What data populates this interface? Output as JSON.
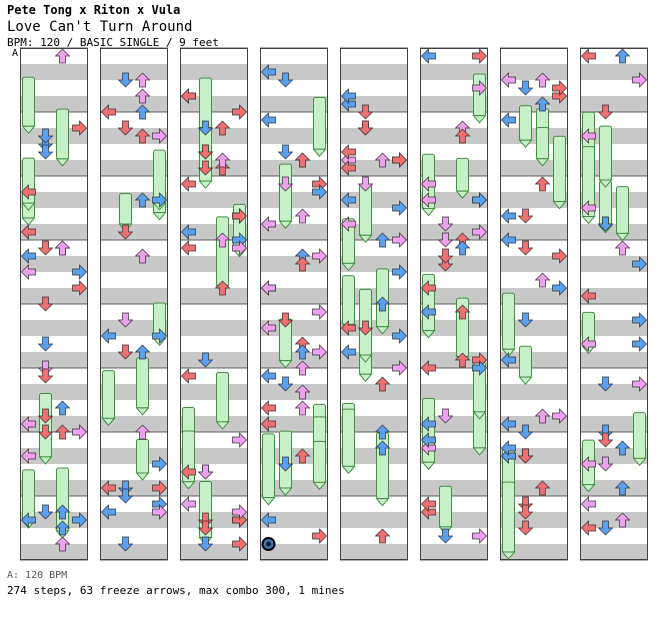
{
  "header": {
    "artist": "Pete Tong x Riton x Vula",
    "title": "Love Can't Turn Around",
    "info": "BPM: 120 / BASIC SINGLE / 9 feet",
    "section_marker": "A"
  },
  "footer": {
    "bpm_note": "A: 120 BPM",
    "stats": "274 steps, 63 freeze arrows, max combo 300, 1 mines"
  },
  "chart_data": {
    "type": "table",
    "chart_type": "dance-step-chart",
    "columns": 8,
    "lanes": [
      "left",
      "down",
      "up",
      "right"
    ],
    "colors": {
      "quarter": "#f07070",
      "eighth": "#5aa0f0",
      "sixteenth": "#f0a0f0",
      "freeze": "#c8f0c8",
      "freeze_border": "#409040",
      "band_gray": "#c8c8c8"
    },
    "steps": 274,
    "freeze_arrows": 63,
    "max_combo": 300,
    "mines": 1
  }
}
